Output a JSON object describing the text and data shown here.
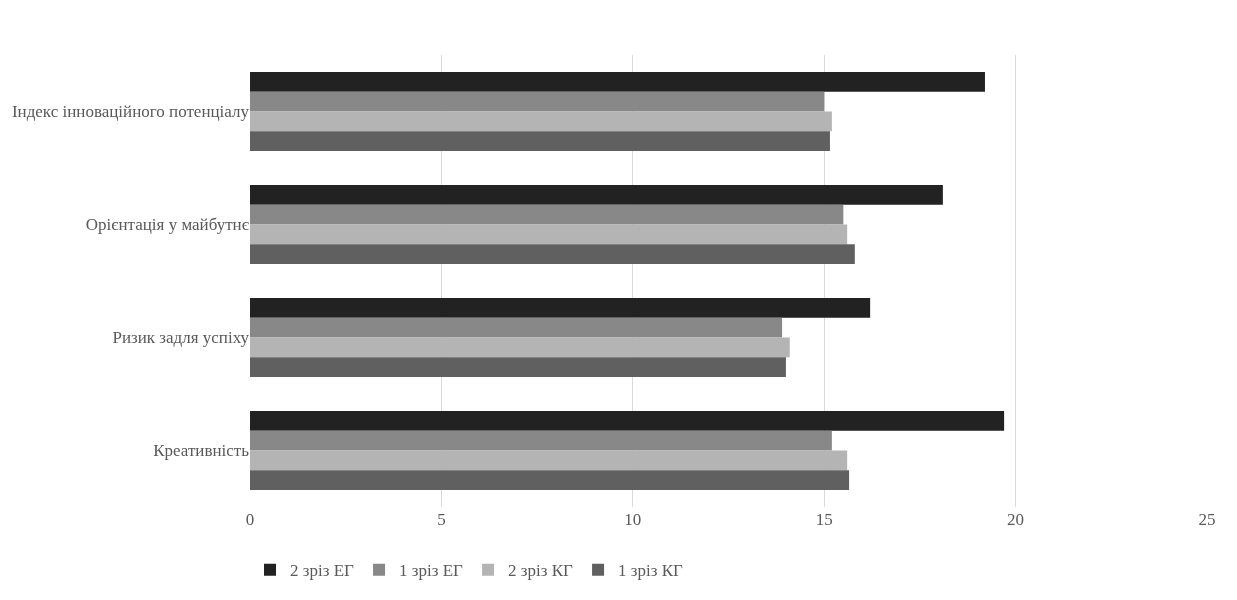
{
  "chart_data": {
    "type": "bar",
    "orientation": "horizontal",
    "categories": [
      "Індекс інноваційного потенціалу",
      "Орієнтація у майбутнє",
      "Ризик задля успіху",
      "Креативність"
    ],
    "series": [
      {
        "name": "2 зріз ЕГ",
        "color": "#222222",
        "values": [
          19.2,
          18.1,
          16.2,
          19.7
        ]
      },
      {
        "name": "1 зріз ЕГ",
        "color": "#888888",
        "values": [
          15.0,
          15.5,
          13.9,
          15.2
        ]
      },
      {
        "name": "2 зріз КГ",
        "color": "#b4b4b4",
        "values": [
          15.2,
          15.6,
          14.1,
          15.6
        ]
      },
      {
        "name": "1 зріз КГ",
        "color": "#606060",
        "values": [
          15.15,
          15.8,
          14.0,
          15.65
        ]
      }
    ],
    "xlim": [
      0,
      25
    ],
    "xticks": [
      0,
      5,
      10,
      15,
      20,
      25
    ],
    "grid": "x",
    "legend": "bottom"
  }
}
